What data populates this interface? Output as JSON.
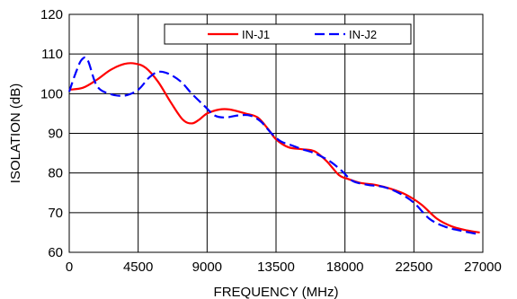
{
  "chart_data": {
    "type": "line",
    "xlabel": "FREQUENCY (MHz)",
    "ylabel": "ISOLATION (dB)",
    "xlim": [
      0,
      27000
    ],
    "ylim": [
      60,
      120
    ],
    "x_ticks": [
      0,
      4500,
      9000,
      13500,
      18000,
      22500,
      27000
    ],
    "y_ticks": [
      60,
      70,
      80,
      90,
      100,
      110,
      120
    ],
    "x_tick_labels": [
      "0",
      "4500",
      "9000",
      "13500",
      "18000",
      "22500",
      "27000"
    ],
    "y_tick_labels": [
      "60",
      "70",
      "80",
      "90",
      "100",
      "110",
      "120"
    ],
    "grid": true,
    "legend_position": "top-right",
    "series": [
      {
        "name": "IN-J1",
        "color": "#ff0000",
        "dash": "solid",
        "x": [
          0,
          900,
          1800,
          2700,
          3600,
          4300,
          5000,
          5800,
          6600,
          7400,
          8000,
          8500,
          9000,
          9800,
          10500,
          11500,
          12300,
          13000,
          13500,
          14300,
          15200,
          16000,
          16800,
          17600,
          18200,
          19000,
          20000,
          21000,
          22000,
          23000,
          24000,
          25000,
          26000,
          26800
        ],
        "y": [
          101,
          101.5,
          103.5,
          106,
          107.5,
          107.6,
          106.5,
          103,
          98,
          93.5,
          92.5,
          93.5,
          95,
          96,
          96,
          95,
          94,
          91,
          88.5,
          86.5,
          86,
          85.5,
          83,
          79.5,
          78.5,
          77.5,
          77,
          76,
          74.5,
          72,
          68.5,
          66.5,
          65.5,
          65
        ]
      },
      {
        "name": "IN-J2",
        "color": "#0000ff",
        "dash": "dashed",
        "x": [
          0,
          400,
          800,
          1200,
          1800,
          2600,
          3600,
          4500,
          5200,
          5800,
          6500,
          7300,
          8000,
          8800,
          9500,
          10200,
          11000,
          11800,
          12500,
          13200,
          13800,
          14500,
          15200,
          16000,
          17000,
          17800,
          18500,
          19500,
          20500,
          21500,
          22500,
          23500,
          24500,
          25500,
          26800
        ],
        "y": [
          100.5,
          105,
          108.5,
          108.5,
          102,
          100,
          99.5,
          101,
          104,
          105.5,
          105,
          103,
          100,
          97,
          94.5,
          94,
          94.5,
          94.5,
          93,
          90,
          88,
          87,
          86,
          85,
          83,
          80.5,
          78,
          77,
          76.5,
          75,
          72.5,
          68.5,
          66.5,
          65.5,
          64.5
        ]
      }
    ]
  }
}
